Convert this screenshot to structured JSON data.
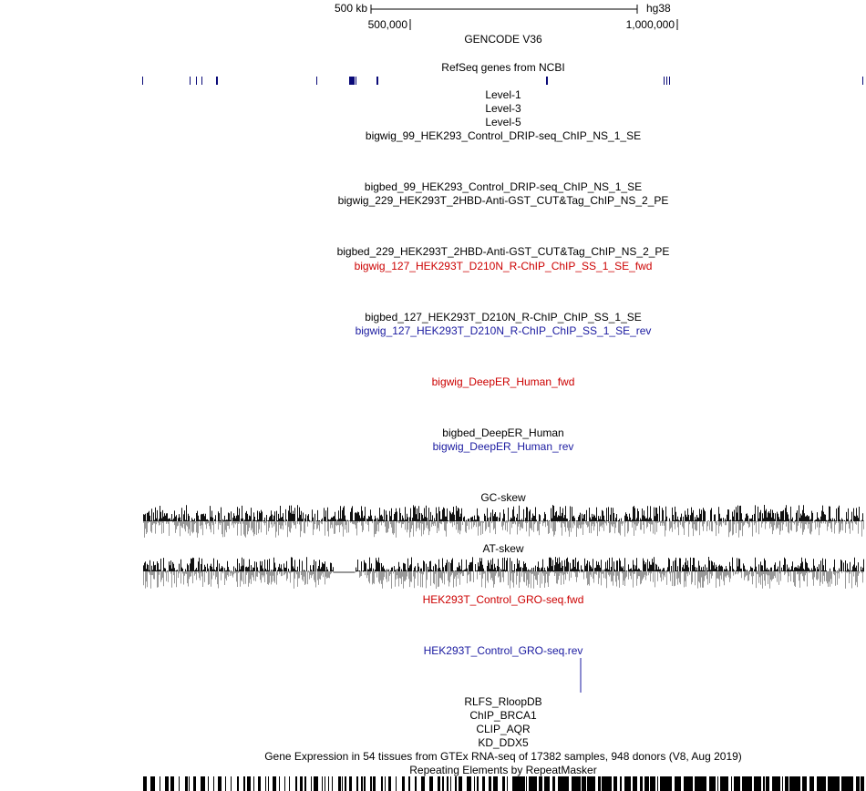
{
  "scale": {
    "length": "500 kb",
    "assembly": "hg38",
    "ticks": [
      "500,000",
      "1,000,000"
    ]
  },
  "gencode": "GENCODE V36",
  "refseq": "RefSeq genes from NCBI",
  "tracks": [
    {
      "label": "Level-1",
      "color": "#000000"
    },
    {
      "label": "Level-3",
      "color": "#000000"
    },
    {
      "label": "Level-5",
      "color": "#000000"
    },
    {
      "label": "bigwig_99_HEK293_Control_DRIP-seq_ChIP_NS_1_SE",
      "color": "#000000"
    },
    {
      "label": "bigbed_99_HEK293_Control_DRIP-seq_ChIP_NS_1_SE",
      "color": "#000000"
    },
    {
      "label": "bigwig_229_HEK293T_2HBD-Anti-GST_CUT&Tag_ChIP_NS_2_PE",
      "color": "#000000"
    },
    {
      "label": "bigbed_229_HEK293T_2HBD-Anti-GST_CUT&Tag_ChIP_NS_2_PE",
      "color": "#000000"
    },
    {
      "label": "bigwig_127_HEK293T_D210N_R-ChIP_ChIP_SS_1_SE_fwd",
      "color": "#cc0000"
    },
    {
      "label": "bigbed_127_HEK293T_D210N_R-ChIP_ChIP_SS_1_SE",
      "color": "#000000"
    },
    {
      "label": "bigwig_127_HEK293T_D210N_R-ChIP_ChIP_SS_1_SE_rev",
      "color": "#1a1aa0"
    },
    {
      "label": "bigwig_DeepER_Human_fwd",
      "color": "#cc0000"
    },
    {
      "label": "bigbed_DeepER_Human",
      "color": "#000000"
    },
    {
      "label": "bigwig_DeepER_Human_rev",
      "color": "#1a1aa0"
    },
    {
      "label": "GC-skew",
      "color": "#000000"
    },
    {
      "label": "AT-skew",
      "color": "#000000"
    },
    {
      "label": "HEK293T_Control_GRO-seq.fwd",
      "color": "#cc0000"
    },
    {
      "label": "HEK293T_Control_GRO-seq.rev",
      "color": "#1a1aa0"
    },
    {
      "label": "RLFS_RloopDB",
      "color": "#000000"
    },
    {
      "label": "ChIP_BRCA1",
      "color": "#000000"
    },
    {
      "label": "CLIP_AQR",
      "color": "#000000"
    },
    {
      "label": "KD_DDX5",
      "color": "#000000"
    },
    {
      "label": "Gene Expression in 54 tissues from GTEx RNA-seq of 17382 samples, 948 donors (V8, Aug 2019)",
      "color": "#000000"
    },
    {
      "label": "Repeating Elements by RepeatMasker",
      "color": "#000000"
    }
  ]
}
